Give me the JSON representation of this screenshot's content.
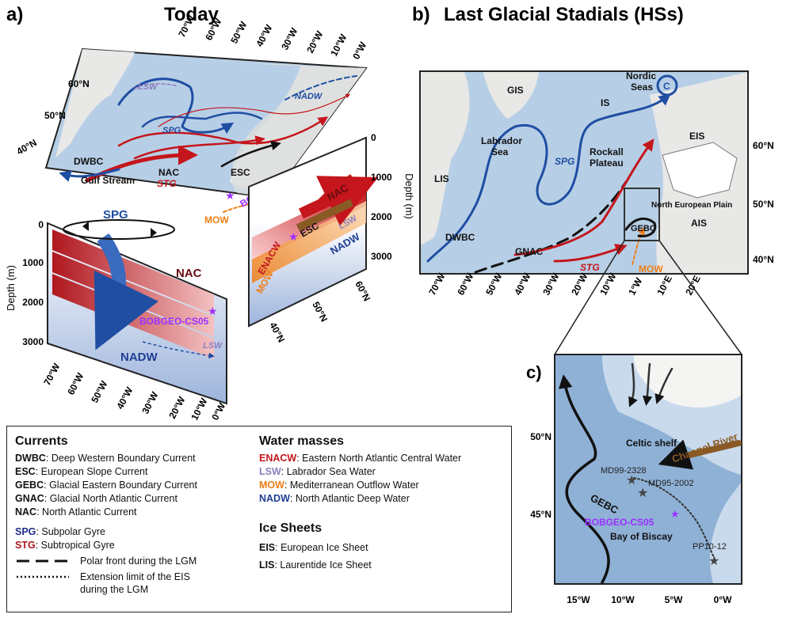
{
  "panel_a": {
    "letter": "a)",
    "title": "Today",
    "lon_top": [
      "70°W",
      "60°W",
      "50°W",
      "40°W",
      "30°W",
      "20°W",
      "10°W",
      "0°W"
    ],
    "lat_top": [
      "60°N",
      "50°N",
      "40°N"
    ],
    "map_labels": {
      "lsw": "LSW",
      "nadw": "NADW",
      "spg": "SPG",
      "dwbc": "DWBC",
      "nac": "NAC",
      "esc": "ESC",
      "stg": "STG",
      "gulf": "Gulf Stream",
      "mow": "MOW",
      "site": "BOBGEO-CS05"
    },
    "section_left": {
      "depth_ticks": [
        "0",
        "1000",
        "2000",
        "3000"
      ],
      "depth_title": "Depth (m)",
      "lon_ticks": [
        "70°W",
        "60°W",
        "50°W",
        "40°W",
        "30°W",
        "20°W",
        "10°W",
        "0°W"
      ],
      "spg": "SPG",
      "nac": "NAC",
      "site": "BOBGEO-CS05",
      "nadw": "NADW",
      "lsw": "LSW"
    },
    "section_right": {
      "depth_ticks": [
        "0",
        "1000",
        "2000",
        "3000"
      ],
      "depth_title": "Depth (m)",
      "lat_ticks": [
        "60°N",
        "50°N",
        "40°N"
      ],
      "nac": "NAC",
      "esc": "ESC",
      "enacw": "ENACW",
      "mow": "MOW",
      "lsw": "LSW",
      "nadw": "NADW"
    }
  },
  "panel_b": {
    "letter": "b)",
    "title": "Last Glacial Stadials (HSs)",
    "lon": [
      "70°W",
      "60°W",
      "50°W",
      "40°W",
      "30°W",
      "20°W",
      "10°W",
      "1°W",
      "10°E",
      "20°E"
    ],
    "lat": [
      "60°N",
      "50°N",
      "40°N"
    ],
    "labels": {
      "gis": "GIS",
      "nordic": "Nordic",
      "seas": "Seas",
      "c": "C",
      "is": "IS",
      "eis": "EIS",
      "labrador1": "Labrador",
      "labrador2": "Sea",
      "spg": "SPG",
      "rockall1": "Rockall",
      "rockall2": "Plateau",
      "lis": "LIS",
      "nep": "North European Plain",
      "ais": "AIS",
      "dwbc": "DWBC",
      "gebc": "GEBC",
      "gnac": "GNAC",
      "stg": "STG",
      "mow": "MOW"
    }
  },
  "panel_c": {
    "letter": "c)",
    "lat": [
      "50°N",
      "45°N"
    ],
    "lon": [
      "15°W",
      "10°W",
      "5°W",
      "0°W"
    ],
    "labels": {
      "celtic": "Celtic shelf",
      "channel": "Channel River",
      "md99": "MD99-2328",
      "md95": "MD95-2002",
      "gebc": "GEBC",
      "site": "BOBGEO-CS05",
      "biscay": "Bay of Biscay",
      "pp10": "PP10-12"
    }
  },
  "legend": {
    "currents_heading": "Currents",
    "currents": [
      {
        "abbr": "DWBC",
        "name": ": Deep Western Boundary Current"
      },
      {
        "abbr": "ESC",
        "name": ": European Slope Current"
      },
      {
        "abbr": "GEBC",
        "name": ": Glacial Eastern Boundary Current"
      },
      {
        "abbr": "GNAC",
        "name": ": Glacial North Atlantic Current"
      },
      {
        "abbr": "NAC",
        "name": ": North Atlantic Current"
      }
    ],
    "gyres": [
      {
        "abbr": "SPG",
        "name": ": Subpolar Gyre",
        "color": "#1f2d8a"
      },
      {
        "abbr": "STG",
        "name": ": Subtropical Gyre",
        "color": "#b0171f"
      }
    ],
    "polar_front": "Polar front during the LGM",
    "eis_limit_1": "Extension limit of the EIS",
    "eis_limit_2": "during the LGM",
    "water_heading": "Water masses",
    "water": [
      {
        "abbr": "ENACW",
        "name": ": Eastern North Atlantic Central Water",
        "color": "#c4161c"
      },
      {
        "abbr": "LSW",
        "name": ": Labrador Sea Water",
        "color": "#8f7ec0"
      },
      {
        "abbr": "MOW",
        "name": ": Mediterranean Outflow Water",
        "color": "#f07e16"
      },
      {
        "abbr": "NADW",
        "name": ": North Atlantic Deep Water",
        "color": "#1f3f94"
      }
    ],
    "ice_heading": "Ice Sheets",
    "ice": [
      {
        "abbr": "EIS",
        "name": ": European Ice Sheet"
      },
      {
        "abbr": "LIS",
        "name": ": Laurentide Ice Sheet"
      }
    ]
  },
  "colors": {
    "ocean": "#b7cfe6",
    "ocean_deep": "#8fb1d6",
    "land": "#e8e8e6",
    "spg_blue": "#1f4ea3",
    "nac_red": "#c4161c",
    "mow_orange": "#f07e16",
    "site_purple": "#9b30ff",
    "esc_black": "#111111",
    "nadw_blue": "#2b4d9c",
    "lsw_lilac": "#8f7ec0"
  }
}
